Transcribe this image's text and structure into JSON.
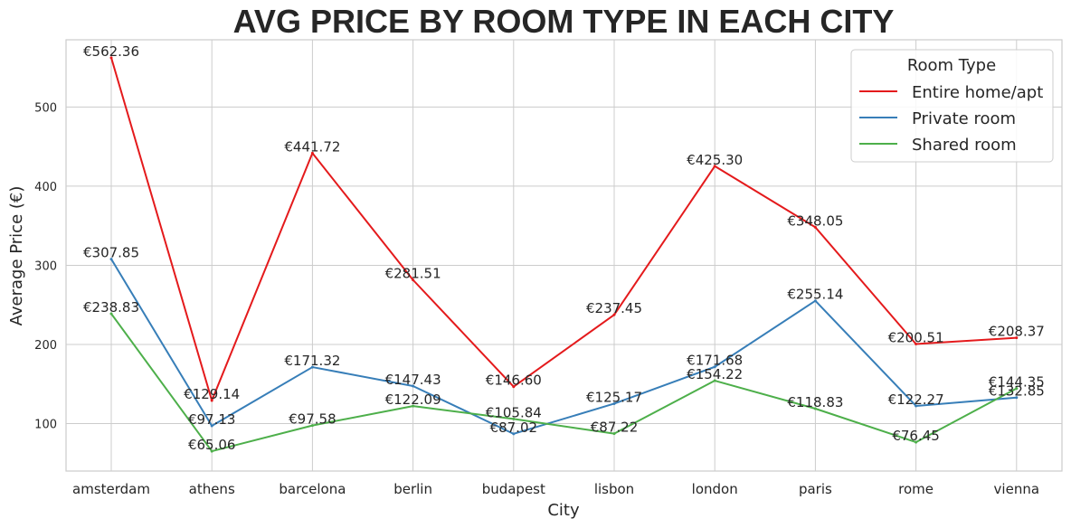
{
  "chart_data": {
    "type": "line",
    "title": "AVG PRICE BY ROOM TYPE IN EACH CITY",
    "xlabel": "City",
    "ylabel": "Average Price (€)",
    "categories": [
      "amsterdam",
      "athens",
      "barcelona",
      "berlin",
      "budapest",
      "lisbon",
      "london",
      "paris",
      "rome",
      "vienna"
    ],
    "ylim": [
      40,
      585
    ],
    "yticks": [
      100,
      200,
      300,
      400,
      500
    ],
    "grid": true,
    "legend": {
      "title": "Room Type",
      "position": "top-right"
    },
    "series": [
      {
        "name": "Entire home/apt",
        "color": "#e41a1c",
        "values": [
          562.36,
          129.14,
          441.72,
          281.51,
          146.6,
          237.45,
          425.3,
          348.05,
          200.51,
          208.37
        ],
        "labels": [
          "€562.36",
          "€129.14",
          "€441.72",
          "€281.51",
          "€146.60",
          "€237.45",
          "€425.30",
          "€348.05",
          "€200.51",
          "€208.37"
        ]
      },
      {
        "name": "Private room",
        "color": "#377eb8",
        "values": [
          307.85,
          97.13,
          171.32,
          147.43,
          87.02,
          125.17,
          171.68,
          255.14,
          122.27,
          132.85
        ],
        "labels": [
          "€307.85",
          "€97.13",
          "€171.32",
          "€147.43",
          "€87.02",
          "€125.17",
          "€171.68",
          "€255.14",
          "€122.27",
          "€132.85"
        ]
      },
      {
        "name": "Shared room",
        "color": "#4daf4a",
        "values": [
          238.83,
          65.06,
          97.58,
          122.09,
          105.84,
          87.22,
          154.22,
          118.83,
          76.45,
          144.35
        ],
        "labels": [
          "€238.83",
          "€65.06",
          "€97.58",
          "€122.09",
          "€105.84",
          "€87.22",
          "€154.22",
          "€118.83",
          "€76.45",
          "€144.35"
        ]
      }
    ]
  }
}
